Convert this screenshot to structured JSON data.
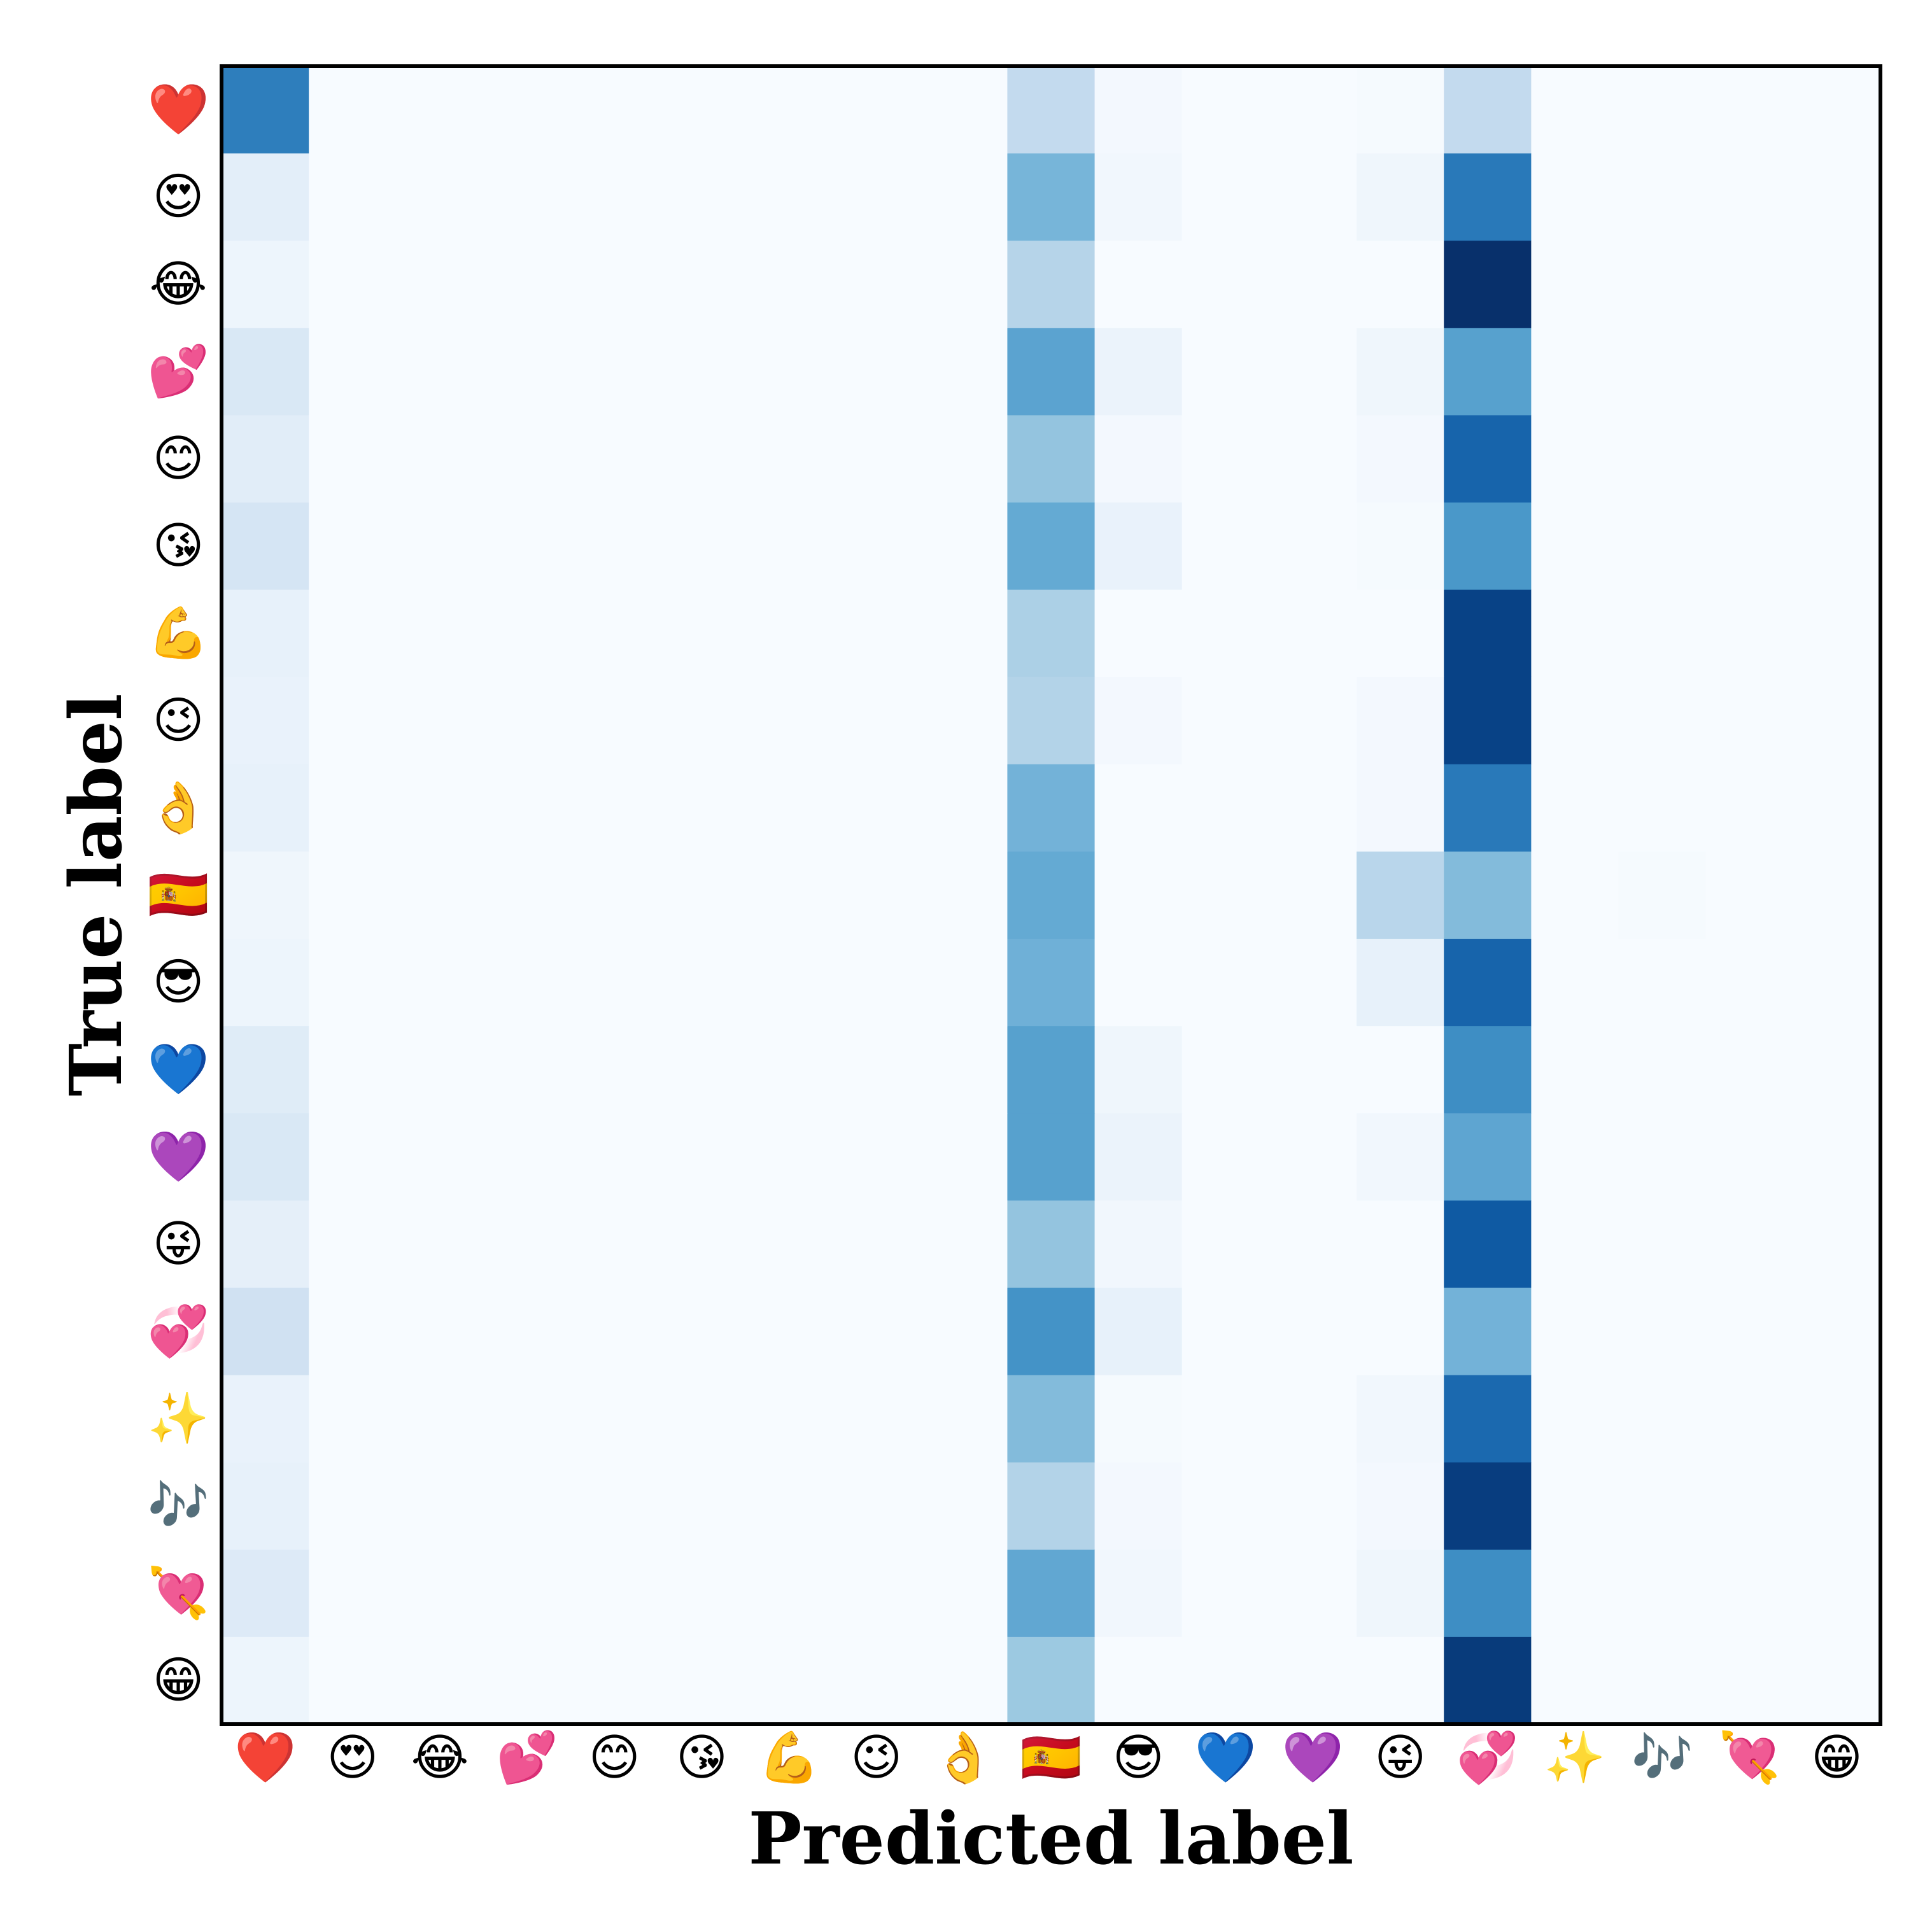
{
  "chart_data": {
    "type": "heatmap",
    "title": "",
    "xlabel": "Predicted label",
    "ylabel": "True label",
    "colormap": "Blues",
    "color_low": "#f7fbff",
    "color_high": "#08306b",
    "value_range": [
      0,
      1
    ],
    "labels": [
      "❤️",
      "😍",
      "😂",
      "💕",
      "😊",
      "😘",
      "💪",
      "😉",
      "👌",
      "🇪🇸",
      "😎",
      "💙",
      "💜",
      "😜",
      "💞",
      "✨",
      "🎶",
      "💘",
      "😁"
    ],
    "matrix": [
      [
        0.7,
        0,
        0,
        0,
        0,
        0,
        0,
        0,
        0,
        0.26,
        0.02,
        0,
        0,
        0.01,
        0.26,
        0,
        0,
        0,
        0
      ],
      [
        0.1,
        0,
        0,
        0,
        0,
        0,
        0,
        0,
        0,
        0.47,
        0.03,
        0,
        0,
        0.04,
        0.72,
        0,
        0,
        0,
        0
      ],
      [
        0.05,
        0,
        0,
        0,
        0,
        0,
        0,
        0,
        0,
        0.3,
        0,
        0,
        0,
        0,
        1.0,
        0,
        0,
        0,
        0
      ],
      [
        0.15,
        0,
        0,
        0,
        0,
        0,
        0,
        0,
        0,
        0.55,
        0.06,
        0,
        0,
        0.04,
        0.56,
        0,
        0,
        0,
        0
      ],
      [
        0.11,
        0,
        0,
        0,
        0,
        0,
        0,
        0,
        0,
        0.4,
        0.02,
        0,
        0,
        0.02,
        0.8,
        0,
        0,
        0,
        0
      ],
      [
        0.17,
        0,
        0,
        0,
        0,
        0,
        0,
        0,
        0,
        0.52,
        0.07,
        0,
        0,
        0.01,
        0.6,
        0,
        0,
        0,
        0
      ],
      [
        0.08,
        0,
        0,
        0,
        0,
        0,
        0,
        0,
        0,
        0.33,
        0,
        0,
        0,
        0,
        0.93,
        0,
        0,
        0,
        0
      ],
      [
        0.07,
        0,
        0,
        0,
        0,
        0,
        0,
        0,
        0,
        0.31,
        0.02,
        0,
        0,
        0.02,
        0.93,
        0,
        0,
        0,
        0
      ],
      [
        0.08,
        0,
        0,
        0,
        0,
        0,
        0,
        0,
        0,
        0.48,
        0,
        0,
        0,
        0.02,
        0.72,
        0,
        0,
        0,
        0
      ],
      [
        0.04,
        0,
        0,
        0,
        0,
        0,
        0,
        0,
        0,
        0.52,
        0,
        0,
        0,
        0.29,
        0.44,
        0,
        0.01,
        0,
        0
      ],
      [
        0.05,
        0,
        0,
        0,
        0,
        0,
        0,
        0,
        0,
        0.49,
        0,
        0,
        0,
        0.08,
        0.8,
        0,
        0,
        0,
        0
      ],
      [
        0.12,
        0,
        0,
        0,
        0,
        0,
        0,
        0,
        0,
        0.56,
        0.04,
        0,
        0,
        0,
        0.64,
        0,
        0,
        0,
        0
      ],
      [
        0.15,
        0,
        0,
        0,
        0,
        0,
        0,
        0,
        0,
        0.56,
        0.06,
        0,
        0,
        0.03,
        0.54,
        0,
        0,
        0,
        0
      ],
      [
        0.09,
        0,
        0,
        0,
        0,
        0,
        0,
        0,
        0,
        0.4,
        0.03,
        0,
        0,
        0,
        0.84,
        0,
        0,
        0,
        0
      ],
      [
        0.2,
        0,
        0,
        0,
        0,
        0,
        0,
        0,
        0,
        0.62,
        0.08,
        0,
        0,
        0,
        0.48,
        0,
        0,
        0,
        0
      ],
      [
        0.07,
        0,
        0,
        0,
        0,
        0,
        0,
        0,
        0,
        0.44,
        0.01,
        0,
        0,
        0.03,
        0.78,
        0,
        0,
        0,
        0
      ],
      [
        0.08,
        0,
        0,
        0,
        0,
        0,
        0,
        0,
        0,
        0.31,
        0.02,
        0,
        0,
        0.02,
        0.95,
        0,
        0,
        0,
        0
      ],
      [
        0.13,
        0,
        0,
        0,
        0,
        0,
        0,
        0,
        0,
        0.53,
        0.03,
        0,
        0,
        0.04,
        0.64,
        0,
        0,
        0,
        0
      ],
      [
        0.05,
        0,
        0,
        0,
        0,
        0,
        0,
        0,
        0,
        0.38,
        0,
        0,
        0,
        0,
        0.96,
        0,
        0,
        0,
        0
      ]
    ],
    "grid": false,
    "legend": "none"
  }
}
